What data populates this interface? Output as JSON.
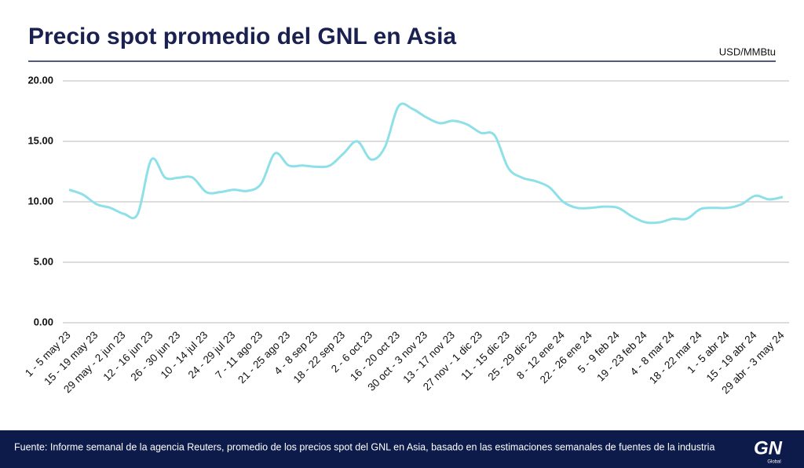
{
  "chart_data": {
    "type": "line",
    "title": "Precio spot promedio del GNL en Asia",
    "unit_label": "USD/MMBtu",
    "source": "Fuente: Informe semanal de la agencia Reuters, promedio de los precios spot del GNL en Asia, basado en las estimaciones semanales de fuentes de la industria",
    "logo": "GN",
    "logo_sub": "Global",
    "categories": [
      "1 - 5 may 23",
      null,
      "15 - 19 may 23",
      null,
      "29 may - 2 jun 23",
      null,
      "12 - 16 jun 23",
      null,
      "26 - 30 jun 23",
      null,
      "10 - 14 jul 23",
      null,
      "24 - 29 jul 23",
      null,
      "7 - 11 ago 23",
      null,
      "21 - 25 ago 23",
      null,
      "4 - 8 sep 23",
      null,
      "18 - 22 sep 23",
      null,
      "2 - 6 oct 23",
      null,
      "16 - 20 oct 23",
      null,
      "30 oct - 3 nov 23",
      null,
      "13 - 17 nov 23",
      null,
      "27 nov - 1 dic 23",
      null,
      "11 - 15 dic 23",
      null,
      "25 - 29 dic 23",
      null,
      "8 - 12 ene 24",
      null,
      "22 - 26 ene 24",
      null,
      "5 - 9 feb 24",
      null,
      "19 - 23 feb 24",
      null,
      "4 - 8 mar 24",
      null,
      "18 - 22 mar 24",
      null,
      "1 - 5 abr 24",
      null,
      "15 - 19 abr 24",
      null,
      "29 abr - 3 may 24"
    ],
    "values": [
      11.0,
      10.6,
      9.8,
      9.5,
      9.0,
      9.0,
      13.5,
      12.0,
      12.0,
      12.0,
      10.8,
      10.8,
      11.0,
      10.9,
      11.5,
      14.0,
      13.0,
      13.0,
      12.9,
      13.0,
      14.0,
      15.0,
      13.5,
      14.5,
      17.9,
      17.7,
      17.0,
      16.5,
      16.7,
      16.4,
      15.7,
      15.5,
      12.8,
      12.0,
      11.7,
      11.2,
      10.0,
      9.5,
      9.5,
      9.6,
      9.5,
      8.8,
      8.3,
      8.3,
      8.6,
      8.6,
      9.4,
      9.5,
      9.5,
      9.8,
      10.5,
      10.2,
      10.4
    ],
    "color": "#8ee0e8",
    "ylim": [
      0,
      20
    ],
    "yticks": [
      {
        "value": 0,
        "label": "0.00"
      },
      {
        "value": 5,
        "label": "5.00"
      },
      {
        "value": 10,
        "label": "10.00"
      },
      {
        "value": 15,
        "label": "15.00"
      },
      {
        "value": 20,
        "label": "20.00"
      }
    ],
    "grid": true
  }
}
